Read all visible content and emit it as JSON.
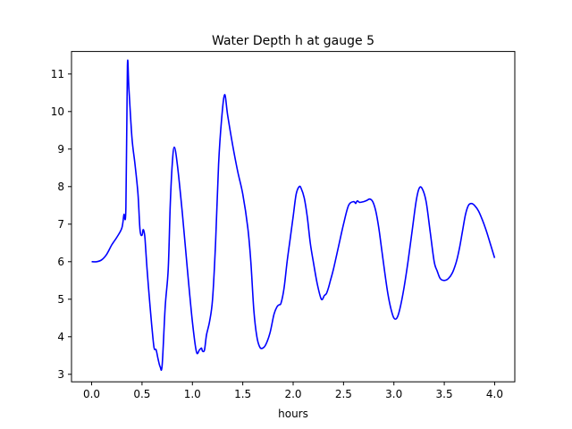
{
  "chart_data": {
    "type": "line",
    "title": "Water Depth h at gauge 5",
    "xlabel": "hours",
    "ylabel": "",
    "xlim": [
      -0.2,
      4.2
    ],
    "ylim": [
      2.8,
      11.6
    ],
    "xticks": [
      0.0,
      0.5,
      1.0,
      1.5,
      2.0,
      2.5,
      3.0,
      3.5,
      4.0
    ],
    "xtick_labels": [
      "0.0",
      "0.5",
      "1.0",
      "1.5",
      "2.0",
      "2.5",
      "3.0",
      "3.5",
      "4.0"
    ],
    "yticks": [
      3,
      4,
      5,
      6,
      7,
      8,
      9,
      10,
      11
    ],
    "ytick_labels": [
      "3",
      "4",
      "5",
      "6",
      "7",
      "8",
      "9",
      "10",
      "11"
    ],
    "grid": false,
    "legend": "none",
    "series": [
      {
        "color": "#0000ff",
        "x": [
          0.0,
          0.05,
          0.1,
          0.15,
          0.2,
          0.25,
          0.3,
          0.32,
          0.34,
          0.355,
          0.37,
          0.4,
          0.43,
          0.46,
          0.48,
          0.5,
          0.51,
          0.52,
          0.53,
          0.55,
          0.58,
          0.6,
          0.62,
          0.64,
          0.66,
          0.68,
          0.7,
          0.73,
          0.76,
          0.78,
          0.8,
          0.82,
          0.85,
          0.9,
          0.95,
          1.0,
          1.04,
          1.07,
          1.09,
          1.1,
          1.12,
          1.14,
          1.17,
          1.2,
          1.23,
          1.26,
          1.29,
          1.32,
          1.35,
          1.4,
          1.45,
          1.5,
          1.55,
          1.58,
          1.61,
          1.64,
          1.67,
          1.7,
          1.73,
          1.77,
          1.81,
          1.84,
          1.86,
          1.88,
          1.91,
          1.94,
          1.97,
          2.0,
          2.03,
          2.06,
          2.08,
          2.11,
          2.14,
          2.17,
          2.2,
          2.24,
          2.28,
          2.31,
          2.33,
          2.35,
          2.37,
          2.4,
          2.45,
          2.5,
          2.55,
          2.6,
          2.62,
          2.63,
          2.64,
          2.66,
          2.7,
          2.73,
          2.76,
          2.79,
          2.82,
          2.85,
          2.88,
          2.91,
          2.94,
          2.97,
          3.0,
          3.03,
          3.06,
          3.1,
          3.14,
          3.18,
          3.22,
          3.25,
          3.28,
          3.32,
          3.36,
          3.4,
          3.43,
          3.46,
          3.5,
          3.54,
          3.58,
          3.62,
          3.65,
          3.68,
          3.71,
          3.74,
          3.77,
          3.8,
          3.84,
          3.88,
          3.92,
          3.96,
          4.0
        ],
        "y": [
          6.0,
          6.0,
          6.05,
          6.2,
          6.45,
          6.65,
          6.9,
          7.25,
          7.45,
          11.2,
          10.6,
          9.3,
          8.6,
          7.8,
          6.85,
          6.7,
          6.85,
          6.8,
          6.6,
          5.8,
          4.8,
          4.2,
          3.7,
          3.65,
          3.4,
          3.2,
          3.25,
          4.8,
          5.8,
          7.5,
          8.6,
          9.05,
          8.6,
          7.3,
          5.8,
          4.4,
          3.6,
          3.65,
          3.7,
          3.62,
          3.65,
          4.05,
          4.4,
          5.0,
          6.5,
          8.6,
          9.8,
          10.45,
          9.9,
          9.1,
          8.4,
          7.8,
          6.9,
          6.0,
          4.7,
          4.0,
          3.72,
          3.7,
          3.8,
          4.1,
          4.6,
          4.8,
          4.85,
          4.9,
          5.3,
          6.0,
          6.6,
          7.2,
          7.8,
          8.0,
          7.95,
          7.7,
          7.2,
          6.5,
          6.0,
          5.4,
          5.0,
          5.1,
          5.15,
          5.3,
          5.5,
          5.8,
          6.4,
          7.0,
          7.5,
          7.6,
          7.55,
          7.6,
          7.62,
          7.58,
          7.6,
          7.63,
          7.67,
          7.6,
          7.35,
          6.9,
          6.3,
          5.7,
          5.15,
          4.75,
          4.5,
          4.5,
          4.75,
          5.3,
          6.0,
          6.8,
          7.6,
          7.95,
          7.95,
          7.6,
          6.8,
          6.0,
          5.75,
          5.55,
          5.5,
          5.55,
          5.7,
          6.0,
          6.35,
          6.8,
          7.25,
          7.5,
          7.55,
          7.5,
          7.35,
          7.1,
          6.8,
          6.45,
          6.1
        ]
      }
    ]
  }
}
